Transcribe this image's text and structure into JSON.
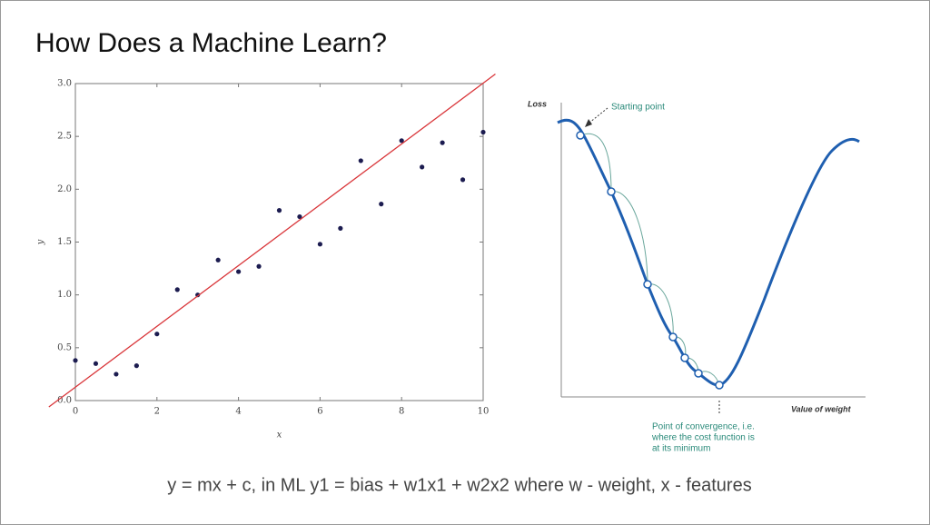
{
  "title": "How Does a Machine Learn?",
  "chart_data": {
    "type": "scatter",
    "xlabel": "x",
    "ylabel": "y",
    "x": [
      0,
      0.5,
      1,
      1.5,
      2,
      2.5,
      3,
      3.5,
      4,
      4.5,
      5,
      5.5,
      6,
      6.5,
      7,
      7.5,
      8,
      8.5,
      9,
      9.5,
      10
    ],
    "values": [
      0.38,
      0.35,
      0.25,
      0.33,
      0.63,
      1.05,
      1.0,
      1.33,
      1.22,
      1.27,
      1.8,
      1.74,
      1.48,
      1.63,
      2.27,
      1.86,
      2.46,
      2.21,
      2.44,
      2.09,
      2.54
    ],
    "color": "#1c1c50",
    "fit_line": {
      "x": [
        -0.65,
        10.3
      ],
      "y": [
        -0.06,
        3.09
      ],
      "color": "#d9363a"
    },
    "xlim": [
      0,
      10
    ],
    "ylim": [
      0,
      3
    ],
    "xticks": [
      0,
      2,
      4,
      6,
      8,
      10
    ],
    "yticks": [
      {
        "value": 0,
        "label": "0.0"
      },
      {
        "value": 0.5,
        "label": "0.5"
      },
      {
        "value": 1,
        "label": "1.0"
      },
      {
        "value": 1.5,
        "label": "1.5"
      },
      {
        "value": 2,
        "label": "2.0"
      },
      {
        "value": 2.5,
        "label": "2.5"
      },
      {
        "value": 3,
        "label": "3.0"
      }
    ]
  },
  "diagram": {
    "y_label": "Loss",
    "x_label": "Value of weight",
    "start_label": "Starting point",
    "convergence_label": [
      "Point of convergence, i.e.",
      "where the cost function is",
      "at its minimum"
    ]
  },
  "caption": "y = mx + c,  in ML  y1 = bias + w1x1 + w2x2 where w - weight, x - features"
}
